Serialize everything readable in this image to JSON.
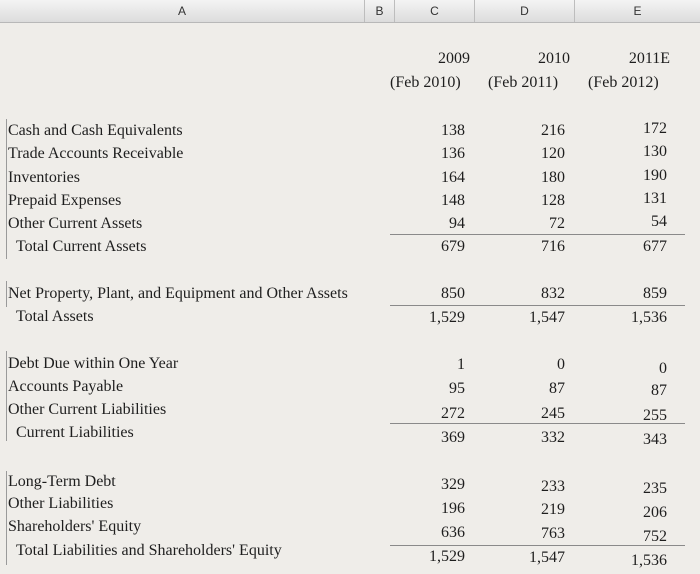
{
  "columns": [
    "A",
    "B",
    "C",
    "D",
    "E"
  ],
  "header": {
    "years": [
      "2009",
      "2010",
      "2011E"
    ],
    "periods": [
      "(Feb 2010)",
      "(Feb 2011)",
      "(Feb 2012)"
    ]
  },
  "sections": [
    {
      "rows": [
        {
          "label": "Cash and Cash Equivalents",
          "values": [
            "138",
            "216",
            "172"
          ]
        },
        {
          "label": "Trade Accounts Receivable",
          "values": [
            "136",
            "120",
            "130"
          ]
        },
        {
          "label": "Inventories",
          "values": [
            "164",
            "180",
            "190"
          ]
        },
        {
          "label": "Prepaid Expenses",
          "values": [
            "148",
            "128",
            "131"
          ]
        },
        {
          "label": "Other Current Assets",
          "values": [
            "94",
            "72",
            "54"
          ]
        },
        {
          "label": "Total Current Assets",
          "values": [
            "679",
            "716",
            "677"
          ]
        }
      ]
    },
    {
      "rows": [
        {
          "label": "Net Property, Plant, and Equipment and Other Assets",
          "values": [
            "850",
            "832",
            "859"
          ]
        },
        {
          "label": "Total Assets",
          "values": [
            "1,529",
            "1,547",
            "1,536"
          ]
        }
      ]
    },
    {
      "rows": [
        {
          "label": "Debt Due within One Year",
          "values": [
            "1",
            "0",
            "0"
          ]
        },
        {
          "label": "Accounts Payable",
          "values": [
            "95",
            "87",
            "87"
          ]
        },
        {
          "label": "Other Current Liabilities",
          "values": [
            "272",
            "245",
            "255"
          ]
        },
        {
          "label": "Current Liabilities",
          "values": [
            "369",
            "332",
            "343"
          ]
        }
      ]
    },
    {
      "rows": [
        {
          "label": "Long-Term Debt",
          "values": [
            "329",
            "233",
            "235"
          ]
        },
        {
          "label": "Other Liabilities",
          "values": [
            "196",
            "219",
            "206"
          ]
        },
        {
          "label": "Shareholders' Equity",
          "values": [
            "636",
            "763",
            "752"
          ]
        },
        {
          "label": "Total Liabilities and Shareholders' Equity",
          "values": [
            "1,529",
            "1,547",
            "1,536"
          ]
        }
      ]
    }
  ]
}
